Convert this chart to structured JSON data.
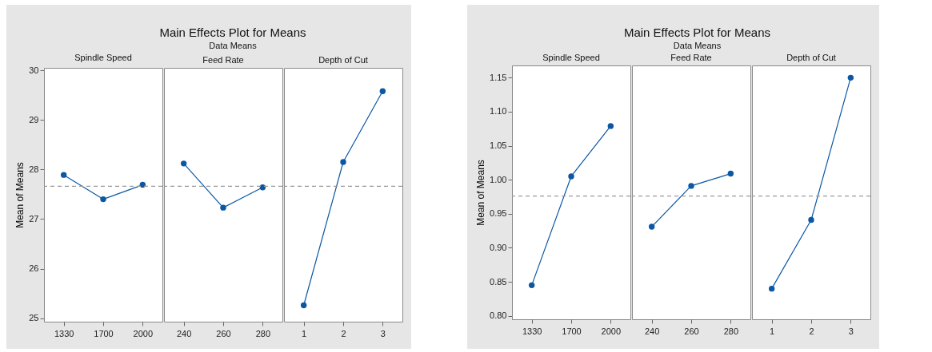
{
  "chart_data": [
    {
      "type": "other",
      "title": "Main Effects Plot for Means",
      "subtitle": "Data Means"
    },
    {
      "type": "line",
      "title": "Spindle Speed",
      "ylabel": "Mean of Means",
      "categories": [
        "1330",
        "1700",
        "2000"
      ],
      "series": [
        {
          "color": "#0b57a4",
          "values": [
            27.89,
            27.4,
            27.69
          ]
        }
      ],
      "ylim": [
        24.93,
        30.05
      ],
      "yticks": [
        25,
        26,
        27,
        28,
        29,
        30
      ],
      "marker": "circle",
      "grid": false,
      "ref_lines": [
        {
          "axis": "y",
          "value": 27.66,
          "color": "#9a9a9a",
          "line_style": "dashed"
        }
      ]
    },
    {
      "type": "line",
      "title": "Feed Rate",
      "categories": [
        "240",
        "260",
        "280"
      ],
      "series": [
        {
          "color": "#0b57a4",
          "values": [
            28.12,
            27.23,
            27.64
          ]
        }
      ],
      "ylim": [
        24.93,
        30.05
      ],
      "tick_labels": "x",
      "marker": "circle",
      "grid": false,
      "ref_lines": [
        {
          "axis": "y",
          "value": 27.66,
          "color": "#9a9a9a",
          "line_style": "dashed"
        }
      ]
    },
    {
      "type": "line",
      "title": "Depth of Cut",
      "categories": [
        "1",
        "2",
        "3"
      ],
      "series": [
        {
          "color": "#0b57a4",
          "values": [
            25.26,
            28.15,
            29.58
          ]
        }
      ],
      "ylim": [
        24.93,
        30.05
      ],
      "tick_labels": "x",
      "marker": "circle",
      "grid": false,
      "ref_lines": [
        {
          "axis": "y",
          "value": 27.66,
          "color": "#9a9a9a",
          "line_style": "dashed"
        }
      ]
    },
    {
      "type": "other",
      "title": "Main Effects Plot for Means",
      "subtitle": "Data Means"
    },
    {
      "type": "line",
      "title": "Spindle Speed",
      "ylabel": "Mean of Means",
      "categories": [
        "1330",
        "1700",
        "2000"
      ],
      "series": [
        {
          "color": "#0b57a4",
          "values": [
            0.845,
            1.005,
            1.079
          ]
        }
      ],
      "ylim": [
        0.795,
        1.168
      ],
      "yticks": [
        {
          "value": 0.8,
          "label": "0.80"
        },
        {
          "value": 0.85,
          "label": "0.85"
        },
        {
          "value": 0.9,
          "label": "0.90"
        },
        {
          "value": 0.95,
          "label": "0.95"
        },
        {
          "value": 1,
          "label": "1.00"
        },
        {
          "value": 1.05,
          "label": "1.05"
        },
        {
          "value": 1.1,
          "label": "1.10"
        },
        {
          "value": 1.15,
          "label": "1.15"
        }
      ],
      "marker": "circle",
      "grid": false,
      "ref_lines": [
        {
          "axis": "y",
          "value": 0.976,
          "color": "#9a9a9a",
          "line_style": "dashed"
        }
      ]
    },
    {
      "type": "line",
      "title": "Feed Rate",
      "categories": [
        "240",
        "260",
        "280"
      ],
      "series": [
        {
          "color": "#0b57a4",
          "values": [
            0.931,
            0.991,
            1.009
          ]
        }
      ],
      "ylim": [
        0.795,
        1.168
      ],
      "tick_labels": "x",
      "marker": "circle",
      "grid": false,
      "ref_lines": [
        {
          "axis": "y",
          "value": 0.976,
          "color": "#9a9a9a",
          "line_style": "dashed"
        }
      ]
    },
    {
      "type": "line",
      "title": "Depth of Cut",
      "categories": [
        "1",
        "2",
        "3"
      ],
      "series": [
        {
          "color": "#0b57a4",
          "values": [
            0.84,
            0.941,
            1.15
          ]
        }
      ],
      "ylim": [
        0.795,
        1.168
      ],
      "tick_labels": "x",
      "marker": "circle",
      "grid": false,
      "ref_lines": [
        {
          "axis": "y",
          "value": 0.976,
          "color": "#9a9a9a",
          "line_style": "dashed"
        }
      ]
    }
  ]
}
